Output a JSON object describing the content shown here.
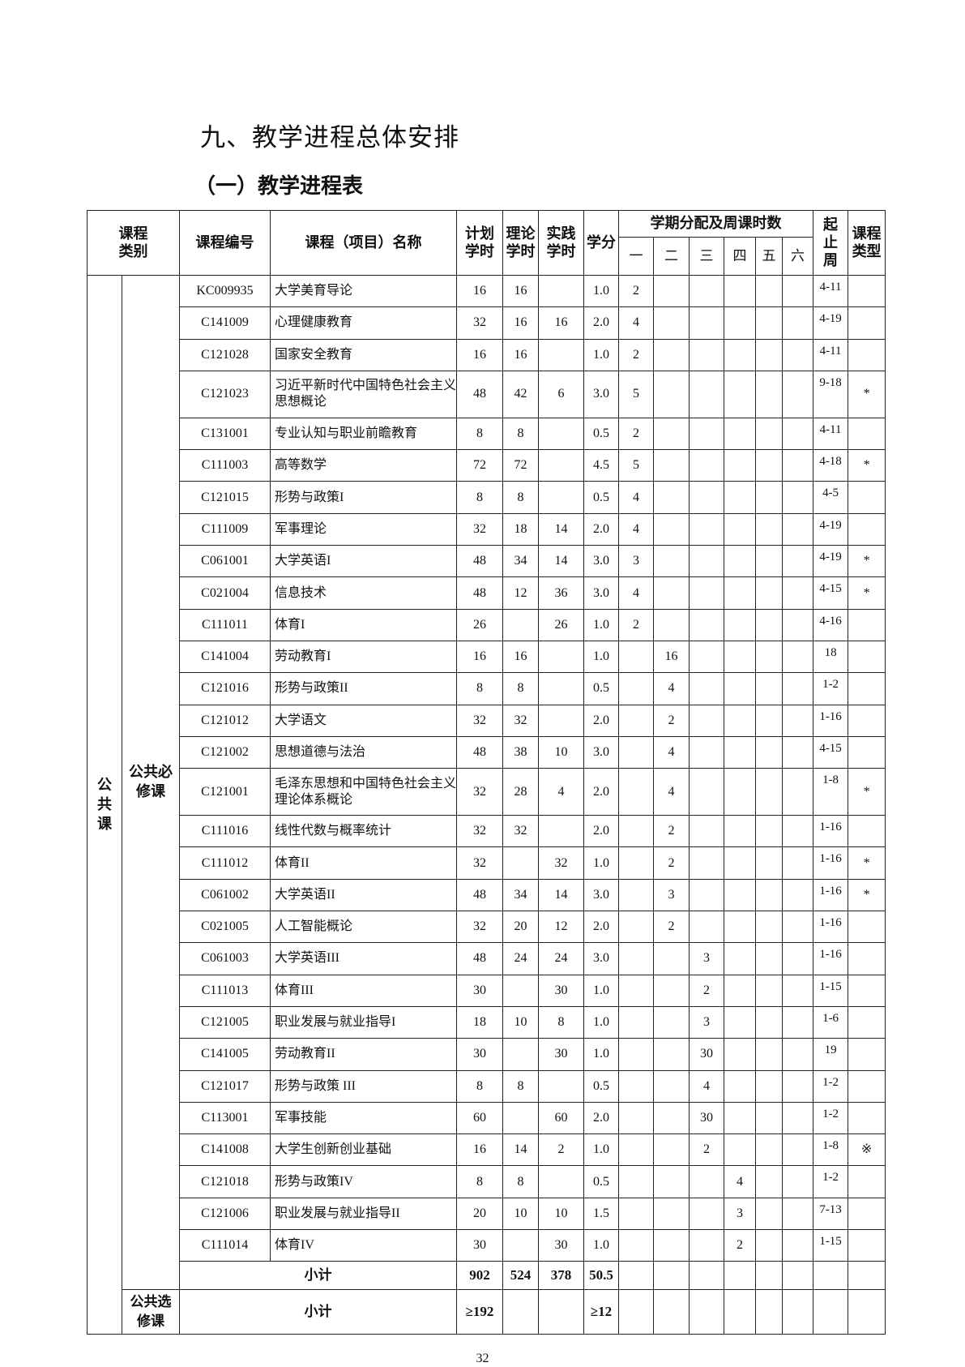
{
  "title": "九、教学进程总体安排",
  "subtitle": "（一）教学进程表",
  "headers": {
    "category": "课程类别",
    "code": "课程编号",
    "name": "课程（项目）名称",
    "plan_hours": "计划学时",
    "theory_hours": "理论学时",
    "practice_hours": "实践学时",
    "credits": "学分",
    "semester_group": "学期分配及周课时数",
    "semesters": [
      "一",
      "二",
      "三",
      "四",
      "五",
      "六"
    ],
    "weeks": "起止周",
    "course_type": "课程类型"
  },
  "category_main": "公共课",
  "category_required": "公共必修课",
  "category_elective": "公共选修课",
  "rows": [
    {
      "code": "KC009935",
      "name": "大学美育导论",
      "plan": "16",
      "theory": "16",
      "practice": "",
      "credit": "1.0",
      "s": [
        "2",
        "",
        "",
        "",
        "",
        ""
      ],
      "weeks": "4-11",
      "type": ""
    },
    {
      "code": "C141009",
      "name": "心理健康教育",
      "plan": "32",
      "theory": "16",
      "practice": "16",
      "credit": "2.0",
      "s": [
        "4",
        "",
        "",
        "",
        "",
        ""
      ],
      "weeks": "4-19",
      "type": ""
    },
    {
      "code": "C121028",
      "name": "国家安全教育",
      "plan": "16",
      "theory": "16",
      "practice": "",
      "credit": "1.0",
      "s": [
        "2",
        "",
        "",
        "",
        "",
        ""
      ],
      "weeks": "4-11",
      "type": ""
    },
    {
      "code": "C121023",
      "name": "习近平新时代中国特色社会主义思想概论",
      "plan": "48",
      "theory": "42",
      "practice": "6",
      "credit": "3.0",
      "s": [
        "5",
        "",
        "",
        "",
        "",
        ""
      ],
      "weeks": "9-18",
      "type": "*",
      "dbl": true
    },
    {
      "code": "C131001",
      "name": "专业认知与职业前瞻教育",
      "plan": "8",
      "theory": "8",
      "practice": "",
      "credit": "0.5",
      "s": [
        "2",
        "",
        "",
        "",
        "",
        ""
      ],
      "weeks": "4-11",
      "type": ""
    },
    {
      "code": "C111003",
      "name": "高等数学",
      "plan": "72",
      "theory": "72",
      "practice": "",
      "credit": "4.5",
      "s": [
        "5",
        "",
        "",
        "",
        "",
        ""
      ],
      "weeks": "4-18",
      "type": "*"
    },
    {
      "code": "C121015",
      "name": "形势与政策I",
      "plan": "8",
      "theory": "8",
      "practice": "",
      "credit": "0.5",
      "s": [
        "4",
        "",
        "",
        "",
        "",
        ""
      ],
      "weeks": "4-5",
      "type": ""
    },
    {
      "code": "C111009",
      "name": "军事理论",
      "plan": "32",
      "theory": "18",
      "practice": "14",
      "credit": "2.0",
      "s": [
        "4",
        "",
        "",
        "",
        "",
        ""
      ],
      "weeks": "4-19",
      "type": ""
    },
    {
      "code": "C061001",
      "name": "大学英语I",
      "plan": "48",
      "theory": "34",
      "practice": "14",
      "credit": "3.0",
      "s": [
        "3",
        "",
        "",
        "",
        "",
        ""
      ],
      "weeks": "4-19",
      "type": "*"
    },
    {
      "code": "C021004",
      "name": "信息技术",
      "plan": "48",
      "theory": "12",
      "practice": "36",
      "credit": "3.0",
      "s": [
        "4",
        "",
        "",
        "",
        "",
        ""
      ],
      "weeks": "4-15",
      "type": "*"
    },
    {
      "code": "C111011",
      "name": "体育I",
      "plan": "26",
      "theory": "",
      "practice": "26",
      "credit": "1.0",
      "s": [
        "2",
        "",
        "",
        "",
        "",
        ""
      ],
      "weeks": "4-16",
      "type": ""
    },
    {
      "code": "C141004",
      "name": "劳动教育I",
      "plan": "16",
      "theory": "16",
      "practice": "",
      "credit": "1.0",
      "s": [
        "",
        "16",
        "",
        "",
        "",
        ""
      ],
      "weeks": "18",
      "type": ""
    },
    {
      "code": "C121016",
      "name": "形势与政策II",
      "plan": "8",
      "theory": "8",
      "practice": "",
      "credit": "0.5",
      "s": [
        "",
        "4",
        "",
        "",
        "",
        ""
      ],
      "weeks": "1-2",
      "type": ""
    },
    {
      "code": "C121012",
      "name": "大学语文",
      "plan": "32",
      "theory": "32",
      "practice": "",
      "credit": "2.0",
      "s": [
        "",
        "2",
        "",
        "",
        "",
        ""
      ],
      "weeks": "1-16",
      "type": ""
    },
    {
      "code": "C121002",
      "name": "思想道德与法治",
      "plan": "48",
      "theory": "38",
      "practice": "10",
      "credit": "3.0",
      "s": [
        "",
        "4",
        "",
        "",
        "",
        ""
      ],
      "weeks": "4-15",
      "type": ""
    },
    {
      "code": "C121001",
      "name": "毛泽东思想和中国特色社会主义理论体系概论",
      "plan": "32",
      "theory": "28",
      "practice": "4",
      "credit": "2.0",
      "s": [
        "",
        "4",
        "",
        "",
        "",
        ""
      ],
      "weeks": "1-8",
      "type": "*",
      "dbl": true
    },
    {
      "code": "C111016",
      "name": "线性代数与概率统计",
      "plan": "32",
      "theory": "32",
      "practice": "",
      "credit": "2.0",
      "s": [
        "",
        "2",
        "",
        "",
        "",
        ""
      ],
      "weeks": "1-16",
      "type": ""
    },
    {
      "code": "C111012",
      "name": "体育II",
      "plan": "32",
      "theory": "",
      "practice": "32",
      "credit": "1.0",
      "s": [
        "",
        "2",
        "",
        "",
        "",
        ""
      ],
      "weeks": "1-16",
      "type": "*"
    },
    {
      "code": "C061002",
      "name": "大学英语II",
      "plan": "48",
      "theory": "34",
      "practice": "14",
      "credit": "3.0",
      "s": [
        "",
        "3",
        "",
        "",
        "",
        ""
      ],
      "weeks": "1-16",
      "type": "*"
    },
    {
      "code": "C021005",
      "name": "人工智能概论",
      "plan": "32",
      "theory": "20",
      "practice": "12",
      "credit": "2.0",
      "s": [
        "",
        "2",
        "",
        "",
        "",
        ""
      ],
      "weeks": "1-16",
      "type": ""
    },
    {
      "code": "C061003",
      "name": "大学英语III",
      "plan": "48",
      "theory": "24",
      "practice": "24",
      "credit": "3.0",
      "s": [
        "",
        "",
        "3",
        "",
        "",
        ""
      ],
      "weeks": "1-16",
      "type": ""
    },
    {
      "code": "C111013",
      "name": "体育III",
      "plan": "30",
      "theory": "",
      "practice": "30",
      "credit": "1.0",
      "s": [
        "",
        "",
        "2",
        "",
        "",
        ""
      ],
      "weeks": "1-15",
      "type": ""
    },
    {
      "code": "C121005",
      "name": "职业发展与就业指导I",
      "plan": "18",
      "theory": "10",
      "practice": "8",
      "credit": "1.0",
      "s": [
        "",
        "",
        "3",
        "",
        "",
        ""
      ],
      "weeks": "1-6",
      "type": ""
    },
    {
      "code": "C141005",
      "name": "劳动教育II",
      "plan": "30",
      "theory": "",
      "practice": "30",
      "credit": "1.0",
      "s": [
        "",
        "",
        "30",
        "",
        "",
        ""
      ],
      "weeks": "19",
      "type": ""
    },
    {
      "code": "C121017",
      "name": "形势与政策 III",
      "plan": "8",
      "theory": "8",
      "practice": "",
      "credit": "0.5",
      "s": [
        "",
        "",
        "4",
        "",
        "",
        ""
      ],
      "weeks": "1-2",
      "type": ""
    },
    {
      "code": "C113001",
      "name": "军事技能",
      "plan": "60",
      "theory": "",
      "practice": "60",
      "credit": "2.0",
      "s": [
        "",
        "",
        "30",
        "",
        "",
        ""
      ],
      "weeks": "1-2",
      "type": ""
    },
    {
      "code": "C141008",
      "name": "大学生创新创业基础",
      "plan": "16",
      "theory": "14",
      "practice": "2",
      "credit": "1.0",
      "s": [
        "",
        "",
        "2",
        "",
        "",
        ""
      ],
      "weeks": "1-8",
      "type": "※"
    },
    {
      "code": "C121018",
      "name": "形势与政策IV",
      "plan": "8",
      "theory": "8",
      "practice": "",
      "credit": "0.5",
      "s": [
        "",
        "",
        "",
        "4",
        "",
        ""
      ],
      "weeks": "1-2",
      "type": ""
    },
    {
      "code": "C121006",
      "name": "职业发展与就业指导II",
      "plan": "20",
      "theory": "10",
      "practice": "10",
      "credit": "1.5",
      "s": [
        "",
        "",
        "",
        "3",
        "",
        ""
      ],
      "weeks": "7-13",
      "type": ""
    },
    {
      "code": "C111014",
      "name": "体育IV",
      "plan": "30",
      "theory": "",
      "practice": "30",
      "credit": "1.0",
      "s": [
        "",
        "",
        "",
        "2",
        "",
        ""
      ],
      "weeks": "1-15",
      "type": ""
    }
  ],
  "required_subtotal": {
    "label": "小计",
    "plan": "902",
    "theory": "524",
    "practice": "378",
    "credit": "50.5"
  },
  "elective_subtotal": {
    "label": "小计",
    "plan": "≥192",
    "theory": "",
    "practice": "",
    "credit": "≥12"
  },
  "page_number": "32"
}
